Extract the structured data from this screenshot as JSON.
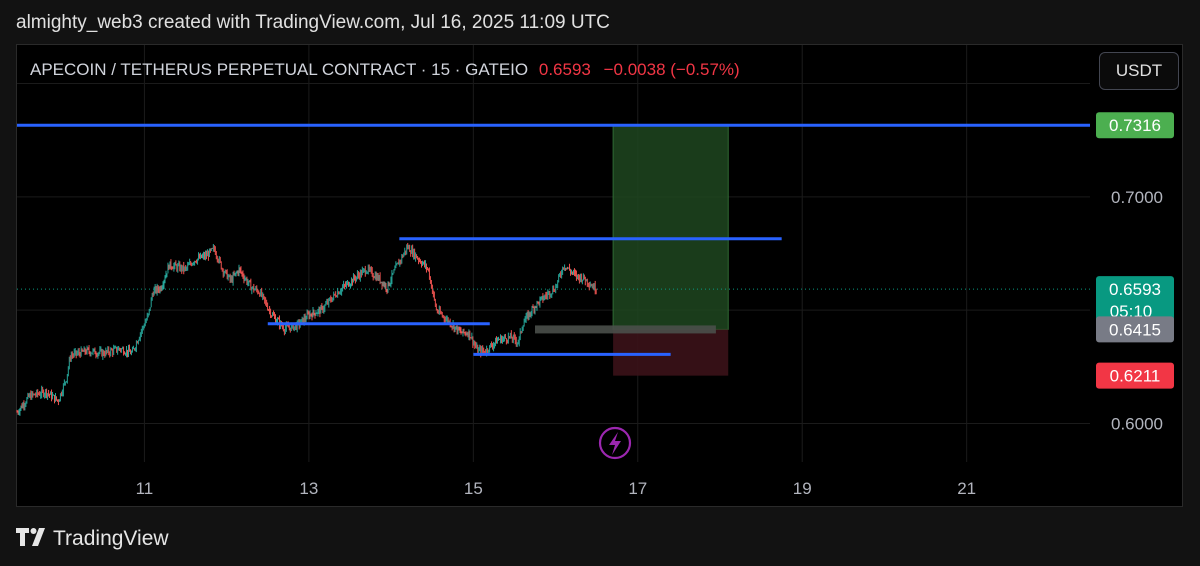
{
  "header": {
    "caption": "almighty_web3 created with TradingView.com, Jul 16, 2025 11:09 UTC"
  },
  "symbol": {
    "title": "APECOIN / TETHERUS PERPETUAL CONTRACT · 15 · GATEIO",
    "price": "0.6593",
    "change": "−0.0038 (−0.57%)"
  },
  "currency_button": "USDT",
  "footer": {
    "brand": "TradingView"
  },
  "colors": {
    "background": "#000000",
    "candle_up": "#26a69a",
    "candle_down": "#ef5350",
    "hline": "#2962ff",
    "target_zone": "#1e4620",
    "stop_zone": "#3b1218",
    "tag_green": "#4caf50",
    "tag_gray": "#787b86",
    "tag_red": "#f23645",
    "alert_icon": "#9c27b0"
  },
  "chart_data": {
    "type": "candlestick",
    "timeframe": "15",
    "y_range": [
      0.583,
      0.767
    ],
    "y_ticks": [
      "0.7500",
      "0.7000",
      "0.6000"
    ],
    "x_range": [
      9.45,
      22.5
    ],
    "x_ticks": [
      "11",
      "13",
      "15",
      "17",
      "19",
      "21"
    ],
    "price_path": [
      [
        9.45,
        0.605
      ],
      [
        9.6,
        0.612
      ],
      [
        9.8,
        0.614
      ],
      [
        9.95,
        0.61
      ],
      [
        10.05,
        0.62
      ],
      [
        10.1,
        0.63
      ],
      [
        10.3,
        0.632
      ],
      [
        10.5,
        0.631
      ],
      [
        10.7,
        0.633
      ],
      [
        10.85,
        0.631
      ],
      [
        10.95,
        0.64
      ],
      [
        11.05,
        0.648
      ],
      [
        11.1,
        0.658
      ],
      [
        11.2,
        0.66
      ],
      [
        11.3,
        0.67
      ],
      [
        11.5,
        0.668
      ],
      [
        11.6,
        0.672
      ],
      [
        11.75,
        0.674
      ],
      [
        11.85,
        0.677
      ],
      [
        11.95,
        0.668
      ],
      [
        12.05,
        0.663
      ],
      [
        12.15,
        0.668
      ],
      [
        12.3,
        0.66
      ],
      [
        12.4,
        0.658
      ],
      [
        12.55,
        0.648
      ],
      [
        12.7,
        0.642
      ],
      [
        12.85,
        0.643
      ],
      [
        13.0,
        0.648
      ],
      [
        13.15,
        0.65
      ],
      [
        13.35,
        0.658
      ],
      [
        13.55,
        0.664
      ],
      [
        13.7,
        0.668
      ],
      [
        13.85,
        0.664
      ],
      [
        13.95,
        0.66
      ],
      [
        14.05,
        0.668
      ],
      [
        14.2,
        0.678
      ],
      [
        14.35,
        0.672
      ],
      [
        14.45,
        0.668
      ],
      [
        14.55,
        0.65
      ],
      [
        14.7,
        0.645
      ],
      [
        14.85,
        0.64
      ],
      [
        14.95,
        0.64
      ],
      [
        15.05,
        0.632
      ],
      [
        15.15,
        0.632
      ],
      [
        15.3,
        0.637
      ],
      [
        15.45,
        0.638
      ],
      [
        15.55,
        0.636
      ],
      [
        15.6,
        0.644
      ],
      [
        15.75,
        0.652
      ],
      [
        15.9,
        0.657
      ],
      [
        16.0,
        0.66
      ],
      [
        16.1,
        0.67
      ],
      [
        16.25,
        0.665
      ],
      [
        16.35,
        0.664
      ],
      [
        16.5,
        0.659
      ]
    ],
    "horizontal_lines": [
      {
        "price": 0.7316,
        "x_start": 9.45,
        "x_end": 22.5
      },
      {
        "price": 0.6815,
        "x_start": 14.1,
        "x_end": 18.75
      },
      {
        "price": 0.644,
        "x_start": 12.5,
        "x_end": 15.2
      },
      {
        "price": 0.6305,
        "x_start": 15.0,
        "x_end": 17.4
      }
    ],
    "position": {
      "x_start": 16.7,
      "x_end": 18.1,
      "entry": 0.6415,
      "target": 0.7316,
      "stop": 0.6211
    },
    "last_price": 0.6593,
    "price_tags": [
      {
        "label": "0.7316",
        "price": 0.7316,
        "color": "#4caf50"
      },
      {
        "label": "0.6593",
        "sub": "05:10",
        "price": 0.6593,
        "color": "#089981"
      },
      {
        "label": "0.6415",
        "price": 0.6415,
        "color": "#787b86"
      },
      {
        "label": "0.6211",
        "price": 0.6211,
        "color": "#f23645"
      }
    ]
  }
}
